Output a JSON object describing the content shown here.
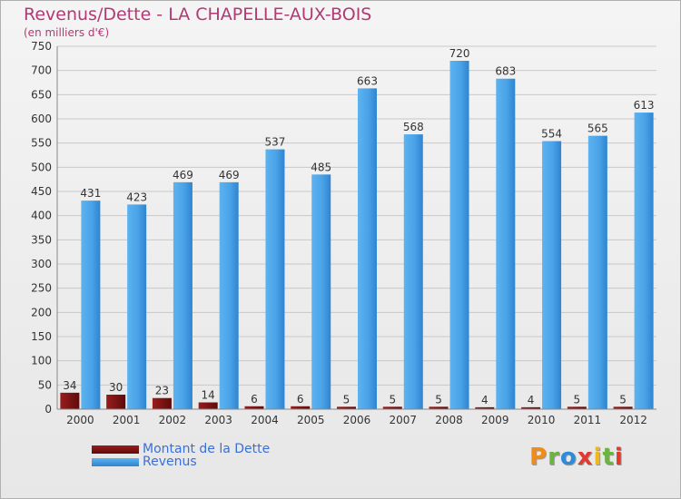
{
  "chart_data": {
    "type": "bar",
    "title": "Revenus/Dette - LA CHAPELLE-AUX-BOIS",
    "subtitle": "(en milliers d'€)",
    "categories": [
      "2000",
      "2001",
      "2002",
      "2003",
      "2004",
      "2005",
      "2006",
      "2007",
      "2008",
      "2009",
      "2010",
      "2011",
      "2012"
    ],
    "series": [
      {
        "name": "Montant de la Dette",
        "values": [
          34,
          30,
          23,
          14,
          6,
          6,
          5,
          5,
          5,
          4,
          4,
          5,
          5
        ],
        "color": "#7a1010"
      },
      {
        "name": "Revenus",
        "values": [
          431,
          423,
          469,
          469,
          537,
          485,
          663,
          568,
          720,
          683,
          554,
          565,
          613
        ],
        "color": "#4aa3e8"
      }
    ],
    "ylim": [
      0,
      750
    ],
    "yticks": [
      0,
      50,
      100,
      150,
      200,
      250,
      300,
      350,
      400,
      450,
      500,
      550,
      600,
      650,
      700,
      750
    ],
    "grid": true,
    "legend": "bottom-left"
  },
  "logo": {
    "text": "Proxiti"
  }
}
